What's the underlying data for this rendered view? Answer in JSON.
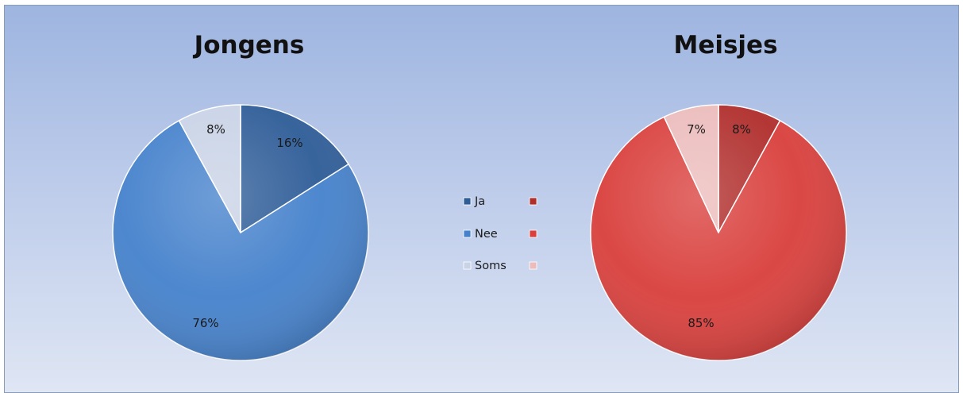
{
  "chart_data": [
    {
      "type": "pie",
      "title": "Jongens",
      "categories": [
        "Ja",
        "Nee",
        "Soms"
      ],
      "values": [
        16,
        76,
        8
      ],
      "labels": [
        "16%",
        "76%",
        "8%"
      ],
      "colors": [
        "#2f5d98",
        "#4682cc",
        "#c9d3e6"
      ]
    },
    {
      "type": "pie",
      "title": "Meisjes",
      "categories": [
        "Ja",
        "Nee",
        "Soms"
      ],
      "values": [
        8,
        85,
        7
      ],
      "labels": [
        "8%",
        "85%",
        "7%"
      ],
      "colors": [
        "#b02e2c",
        "#d9403d",
        "#ecbcbc"
      ]
    }
  ],
  "legend": {
    "placement": "center",
    "items": [
      {
        "label": "Ja",
        "colors": [
          "#2f5d98",
          "#b02e2c"
        ]
      },
      {
        "label": "Nee",
        "colors": [
          "#4682cc",
          "#d9403d"
        ]
      },
      {
        "label": "Soms",
        "colors": [
          "#c9d3e6",
          "#ecbcbc"
        ]
      }
    ]
  }
}
